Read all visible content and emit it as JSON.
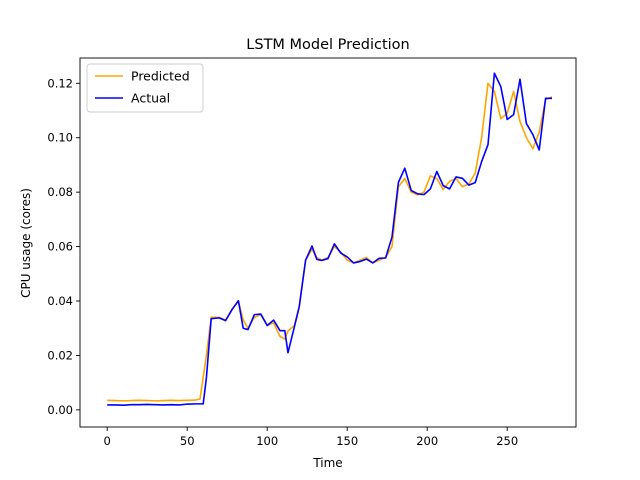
{
  "chart_data": {
    "type": "line",
    "title": "LSTM Model Prediction",
    "xlabel": "Time",
    "ylabel": "CPU usage (cores)",
    "xlim": [
      -17,
      293
    ],
    "ylim": [
      -0.0063,
      0.1293
    ],
    "xticks": [
      0,
      50,
      100,
      150,
      200,
      250
    ],
    "yticks": [
      0.0,
      0.02,
      0.04,
      0.06,
      0.08,
      0.1,
      0.12
    ],
    "xtick_labels": [
      "0",
      "50",
      "100",
      "150",
      "200",
      "250"
    ],
    "ytick_labels": [
      "0.00",
      "0.02",
      "0.04",
      "0.06",
      "0.08",
      "0.10",
      "0.12"
    ],
    "grid": false,
    "legend_position": "top-left",
    "series": [
      {
        "name": "Predicted",
        "color": "#ffa500",
        "x": [
          0,
          5,
          10,
          15,
          20,
          25,
          30,
          35,
          40,
          45,
          50,
          55,
          58,
          62,
          65,
          70,
          74,
          78,
          82,
          85,
          88,
          92,
          96,
          100,
          104,
          108,
          111,
          113,
          117,
          120,
          124,
          128,
          131,
          134,
          138,
          142,
          146,
          150,
          154,
          158,
          162,
          166,
          170,
          174,
          178,
          182,
          186,
          190,
          194,
          198,
          202,
          206,
          210,
          214,
          218,
          222,
          226,
          230,
          234,
          238,
          242,
          246,
          250,
          254,
          258,
          262,
          266,
          270,
          274,
          278
        ],
        "y": [
          0.0035,
          0.0034,
          0.0033,
          0.0034,
          0.0035,
          0.0034,
          0.0033,
          0.0034,
          0.0035,
          0.0034,
          0.0035,
          0.0036,
          0.004,
          0.02,
          0.034,
          0.034,
          0.033,
          0.037,
          0.04,
          0.033,
          0.03,
          0.034,
          0.035,
          0.031,
          0.032,
          0.027,
          0.026,
          0.029,
          0.031,
          0.038,
          0.055,
          0.059,
          0.056,
          0.055,
          0.056,
          0.06,
          0.058,
          0.055,
          0.054,
          0.055,
          0.056,
          0.054,
          0.055,
          0.056,
          0.06,
          0.082,
          0.085,
          0.08,
          0.079,
          0.08,
          0.086,
          0.085,
          0.081,
          0.084,
          0.085,
          0.082,
          0.083,
          0.087,
          0.1,
          0.12,
          0.117,
          0.107,
          0.109,
          0.117,
          0.106,
          0.1,
          0.096,
          0.102,
          0.114,
          0.115
        ]
      },
      {
        "name": "Actual",
        "color": "#0000ff",
        "x": [
          0,
          5,
          10,
          15,
          20,
          25,
          30,
          35,
          40,
          45,
          50,
          55,
          60,
          62,
          65,
          70,
          74,
          78,
          82,
          85,
          88,
          92,
          96,
          100,
          104,
          108,
          111,
          113,
          117,
          120,
          124,
          128,
          131,
          134,
          138,
          142,
          146,
          150,
          154,
          158,
          162,
          166,
          170,
          174,
          178,
          182,
          186,
          190,
          194,
          198,
          202,
          206,
          210,
          214,
          218,
          222,
          226,
          230,
          234,
          238,
          242,
          246,
          250,
          254,
          258,
          262,
          266,
          270,
          274,
          278
        ],
        "y": [
          0.0018,
          0.0018,
          0.0017,
          0.0019,
          0.0019,
          0.002,
          0.0019,
          0.0018,
          0.0019,
          0.0018,
          0.0021,
          0.0022,
          0.0022,
          0.0118,
          0.0335,
          0.0338,
          0.0328,
          0.0368,
          0.0401,
          0.03,
          0.0295,
          0.035,
          0.0352,
          0.031,
          0.033,
          0.0291,
          0.0291,
          0.021,
          0.0305,
          0.0378,
          0.055,
          0.0602,
          0.0553,
          0.0549,
          0.0556,
          0.061,
          0.0576,
          0.0562,
          0.054,
          0.0545,
          0.0554,
          0.054,
          0.0557,
          0.0558,
          0.0635,
          0.0836,
          0.0888,
          0.0806,
          0.0794,
          0.0791,
          0.0812,
          0.0876,
          0.0824,
          0.0812,
          0.0856,
          0.0851,
          0.0826,
          0.0835,
          0.0912,
          0.0975,
          0.1237,
          0.1188,
          0.1067,
          0.1085,
          0.1215,
          0.1052,
          0.1012,
          0.0955,
          0.1145,
          0.1145
        ]
      }
    ]
  }
}
